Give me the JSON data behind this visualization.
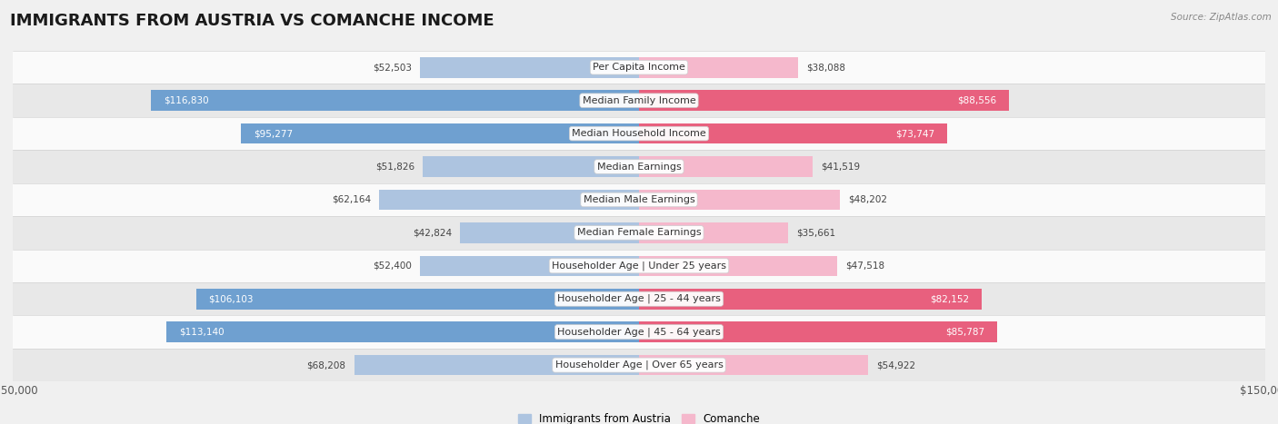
{
  "title": "IMMIGRANTS FROM AUSTRIA VS COMANCHE INCOME",
  "source": "Source: ZipAtlas.com",
  "categories": [
    "Per Capita Income",
    "Median Family Income",
    "Median Household Income",
    "Median Earnings",
    "Median Male Earnings",
    "Median Female Earnings",
    "Householder Age | Under 25 years",
    "Householder Age | 25 - 44 years",
    "Householder Age | 45 - 64 years",
    "Householder Age | Over 65 years"
  ],
  "austria_values": [
    52503,
    116830,
    95277,
    51826,
    62164,
    42824,
    52400,
    106103,
    113140,
    68208
  ],
  "comanche_values": [
    38088,
    88556,
    73747,
    41519,
    48202,
    35661,
    47518,
    82152,
    85787,
    54922
  ],
  "austria_color_light": "#adc4e0",
  "austria_color_dark": "#6fa0d0",
  "comanche_color_light": "#f5b8cc",
  "comanche_color_dark": "#e8607e",
  "austria_label": "Immigrants from Austria",
  "comanche_label": "Comanche",
  "bar_height": 0.62,
  "xlim": 150000,
  "bg_color": "#f0f0f0",
  "row_colors": [
    "#fafafa",
    "#e8e8e8"
  ],
  "title_fontsize": 13,
  "label_fontsize": 8.0,
  "value_fontsize": 7.5,
  "axis_label_fontsize": 8.5,
  "inside_threshold": 70000
}
